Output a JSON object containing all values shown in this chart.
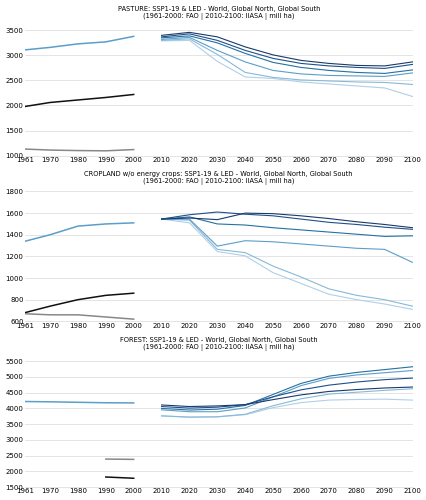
{
  "hist_years_full": [
    1961,
    1970,
    1980,
    1990,
    2000
  ],
  "hist_years_forest_south": [
    1990,
    2000
  ],
  "hist_years_forest_north": [
    1990,
    2000
  ],
  "fut_years": [
    2010,
    2020,
    2030,
    2040,
    2050,
    2060,
    2070,
    2080,
    2090,
    2100
  ],
  "pasture": {
    "title": "PASTURE: SSP1-19 & LED - World, Global North, Global South",
    "subtitle": "(1961-2000: FAO | 2010-2100: IIASA | mill ha)",
    "ylim": [
      1000,
      3700
    ],
    "yticks": [
      1000,
      1500,
      2000,
      2500,
      3000,
      3500
    ],
    "hist_world": [
      3110,
      3160,
      3230,
      3270,
      3380
    ],
    "hist_south": [
      1980,
      2060,
      2110,
      2160,
      2220
    ],
    "hist_north": [
      1130,
      1110,
      1100,
      1095,
      1120
    ],
    "hist_years_south": [
      1961,
      1970,
      1980,
      1990,
      2000
    ],
    "hist_years_north": [
      1961,
      1970,
      1980,
      1990,
      2000
    ],
    "fut_lines": [
      [
        3400,
        3460,
        3370,
        3170,
        3010,
        2900,
        2840,
        2800,
        2790,
        2870
      ],
      [
        3370,
        3430,
        3300,
        3100,
        2940,
        2840,
        2790,
        2760,
        2740,
        2820
      ],
      [
        3350,
        3390,
        3250,
        3040,
        2860,
        2760,
        2700,
        2660,
        2640,
        2710
      ],
      [
        3320,
        3360,
        3100,
        2870,
        2700,
        2630,
        2600,
        2590,
        2580,
        2650
      ],
      [
        3300,
        3330,
        3020,
        2660,
        2560,
        2510,
        2490,
        2470,
        2460,
        2420
      ],
      [
        3290,
        3300,
        2880,
        2570,
        2540,
        2470,
        2430,
        2390,
        2350,
        2180
      ]
    ],
    "fut_colors": [
      "#1a3a6b",
      "#1f4f8a",
      "#2471a3",
      "#5b9ec9",
      "#85bad8",
      "#b0cfe8"
    ]
  },
  "cropland": {
    "title": "CROPLAND w/o energy crops: SSP1-19 & LED - World, Global North, Global South",
    "subtitle": "(1961-2000: FAO | 2010-2100: IIASA | mill ha)",
    "ylim": [
      600,
      1850
    ],
    "yticks": [
      600,
      800,
      1000,
      1200,
      1400,
      1600,
      1800
    ],
    "hist_world": [
      1340,
      1400,
      1480,
      1500,
      1510
    ],
    "hist_south": [
      680,
      740,
      800,
      840,
      860
    ],
    "hist_north": [
      670,
      660,
      660,
      640,
      620
    ],
    "hist_years_south": [
      1961,
      1970,
      1980,
      1990,
      2000
    ],
    "hist_years_north": [
      1961,
      1970,
      1980,
      1990,
      2000
    ],
    "fut_lines": [
      [
        1545,
        1555,
        1540,
        1600,
        1595,
        1575,
        1550,
        1520,
        1495,
        1465
      ],
      [
        1545,
        1585,
        1610,
        1590,
        1575,
        1545,
        1515,
        1495,
        1470,
        1450
      ],
      [
        1545,
        1565,
        1500,
        1490,
        1465,
        1445,
        1425,
        1405,
        1385,
        1390
      ],
      [
        1545,
        1545,
        1295,
        1345,
        1335,
        1315,
        1295,
        1275,
        1265,
        1145
      ],
      [
        1545,
        1535,
        1265,
        1235,
        1110,
        1010,
        900,
        840,
        800,
        740
      ],
      [
        1545,
        1510,
        1245,
        1205,
        1050,
        950,
        850,
        800,
        760,
        710
      ]
    ],
    "fut_colors": [
      "#1a3a6b",
      "#1f4f8a",
      "#2471a3",
      "#5b9ec9",
      "#85bad8",
      "#b0cfe8"
    ]
  },
  "forest": {
    "title": "FOREST: SSP1-19 & LED - World, Global North, Global South",
    "subtitle": "(1961-2000: FAO | 2010-2100: IIASA | mill ha)",
    "ylim": [
      1500,
      5800
    ],
    "yticks": [
      1500,
      2000,
      2500,
      3000,
      3500,
      4000,
      4500,
      5000,
      5500
    ],
    "hist_world": [
      4220,
      4210,
      4195,
      4180,
      4175
    ],
    "hist_south": [
      1820,
      1780
    ],
    "hist_north": [
      2390,
      2380
    ],
    "hist_years_south": [
      1990,
      2000
    ],
    "hist_years_north": [
      1990,
      2000
    ],
    "fut_lines": [
      [
        4110,
        4060,
        4080,
        4120,
        4280,
        4430,
        4540,
        4600,
        4650,
        4680
      ],
      [
        4060,
        4010,
        4040,
        4120,
        4370,
        4590,
        4740,
        4840,
        4915,
        4965
      ],
      [
        4000,
        3950,
        3975,
        4095,
        4445,
        4795,
        5025,
        5145,
        5235,
        5325
      ],
      [
        3955,
        3895,
        3895,
        4015,
        4365,
        4725,
        4955,
        5065,
        5135,
        5205
      ],
      [
        3765,
        3725,
        3735,
        3815,
        4085,
        4305,
        4455,
        4515,
        4575,
        4625
      ],
      [
        3760,
        3720,
        3730,
        3800,
        4025,
        4185,
        4265,
        4285,
        4295,
        4265
      ]
    ],
    "fut_colors": [
      "#1a3a6b",
      "#1f4f8a",
      "#2471a3",
      "#5b9ec9",
      "#85bad8",
      "#b0cfe8"
    ]
  },
  "hist_world_color": "#5b9ec9",
  "hist_south_color": "#111111",
  "hist_north_color": "#888888",
  "xticks": [
    1961,
    1970,
    1980,
    1990,
    2000,
    2010,
    2020,
    2030,
    2040,
    2050,
    2060,
    2070,
    2080,
    2090,
    2100
  ]
}
